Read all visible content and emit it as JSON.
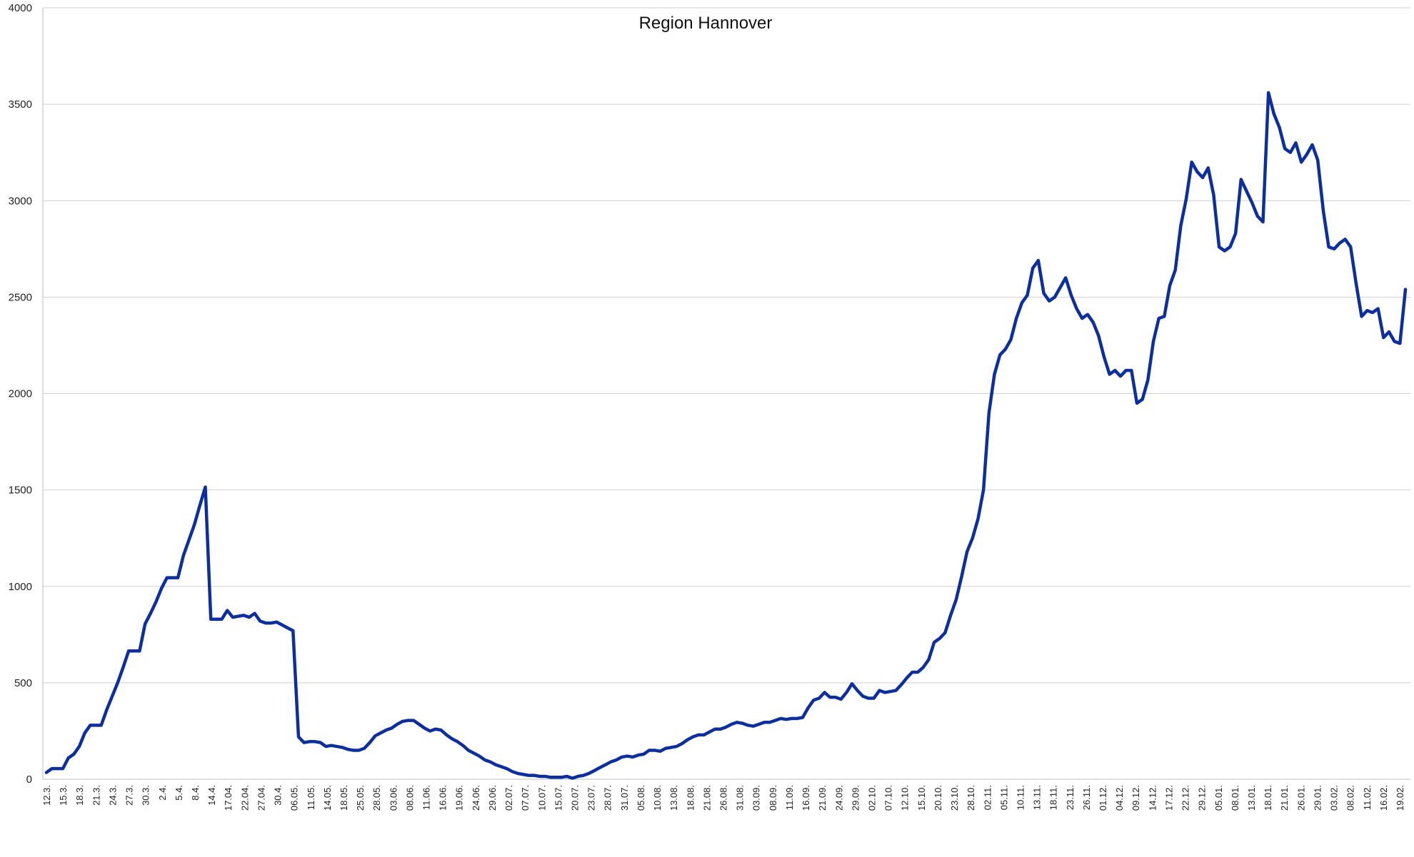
{
  "chart_data": {
    "type": "line",
    "title": "Region Hannover",
    "ylim": [
      0,
      4000
    ],
    "yticks": [
      0,
      500,
      1000,
      1500,
      2000,
      2500,
      3000,
      3500,
      4000
    ],
    "grid": "horizontal",
    "legend": "none",
    "line_color": "#0d2f9e",
    "x_tick_labels": [
      "12.3.",
      "15.3.",
      "18.3.",
      "21.3.",
      "24.3.",
      "27.3.",
      "30.3.",
      "2.4.",
      "5.4.",
      "8.4.",
      "14.4.",
      "17.04.",
      "22.04.",
      "27.04.",
      "30.4.",
      "06.05.",
      "11.05.",
      "14.05.",
      "18.05.",
      "25.05.",
      "28.05.",
      "03.06.",
      "08.06.",
      "11.06.",
      "16.06.",
      "19.06.",
      "24.06.",
      "29.06.",
      "02.07.",
      "07.07.",
      "10.07.",
      "15.07.",
      "20.07.",
      "23.07.",
      "28.07.",
      "31.07.",
      "05.08.",
      "10.08.",
      "13.08.",
      "18.08.",
      "21.08.",
      "26.08.",
      "31.08.",
      "03.09.",
      "08.09.",
      "11.09.",
      "16.09.",
      "21.09.",
      "24.09.",
      "29.09.",
      "02.10.",
      "07.10.",
      "12.10.",
      "15.10.",
      "20.10.",
      "23.10.",
      "28.10.",
      "02.11.",
      "05.11.",
      "10.11.",
      "13.11.",
      "18.11.",
      "23.11.",
      "26.11.",
      "01.12.",
      "04.12.",
      "09.12.",
      "14.12.",
      "17.12.",
      "22.12.",
      "29.12.",
      "05.01.",
      "08.01.",
      "13.01.",
      "18.01.",
      "21.01.",
      "26.01.",
      "29.01.",
      "03.02.",
      "08.02.",
      "11.02.",
      "16.02.",
      "19.02."
    ],
    "series": [
      {
        "values": [
          35,
          55,
          55,
          55,
          110,
          130,
          170,
          240,
          280,
          280,
          280,
          360,
          430,
          500,
          580,
          665,
          665,
          665,
          805,
          860,
          920,
          990,
          1045,
          1045,
          1045,
          1160,
          1240,
          1320,
          1420,
          1515,
          830,
          830,
          830,
          875,
          840,
          845,
          850,
          840,
          860,
          820,
          810,
          810,
          815,
          800,
          785,
          770,
          220,
          190,
          195,
          195,
          190,
          170,
          175,
          170,
          165,
          155,
          150,
          150,
          160,
          190,
          225,
          240,
          255,
          265,
          285,
          300,
          305,
          305,
          285,
          265,
          250,
          260,
          255,
          230,
          210,
          195,
          175,
          150,
          135,
          120,
          100,
          90,
          75,
          65,
          55,
          40,
          30,
          25,
          20,
          20,
          15,
          15,
          10,
          10,
          10,
          15,
          5,
          15,
          20,
          30,
          45,
          60,
          75,
          90,
          100,
          115,
          120,
          115,
          125,
          130,
          150,
          150,
          145,
          160,
          165,
          170,
          185,
          205,
          220,
          230,
          230,
          245,
          260,
          260,
          270,
          285,
          295,
          290,
          280,
          275,
          285,
          295,
          295,
          305,
          315,
          310,
          315,
          315,
          320,
          370,
          410,
          420,
          450,
          425,
          425,
          415,
          450,
          495,
          460,
          430,
          420,
          420,
          460,
          450,
          455,
          460,
          490,
          525,
          555,
          555,
          580,
          620,
          710,
          730,
          760,
          850,
          930,
          1050,
          1180,
          1250,
          1350,
          1500,
          1900,
          2100,
          2200,
          2230,
          2280,
          2390,
          2470,
          2510,
          2650,
          2690,
          2520,
          2480,
          2500,
          2550,
          2600,
          2510,
          2440,
          2390,
          2410,
          2370,
          2300,
          2190,
          2100,
          2120,
          2090,
          2120,
          2120,
          1950,
          1970,
          2070,
          2270,
          2390,
          2400,
          2560,
          2640,
          2870,
          3010,
          3200,
          3150,
          3120,
          3170,
          3030,
          2760,
          2740,
          2760,
          2830,
          3110,
          3050,
          2990,
          2920,
          2890,
          3560,
          3450,
          3380,
          3270,
          3250,
          3300,
          3200,
          3240,
          3290,
          3210,
          2950,
          2760,
          2750,
          2780,
          2800,
          2760,
          2570,
          2400,
          2430,
          2420,
          2440,
          2290,
          2320,
          2270,
          2260,
          2540
        ]
      }
    ]
  }
}
